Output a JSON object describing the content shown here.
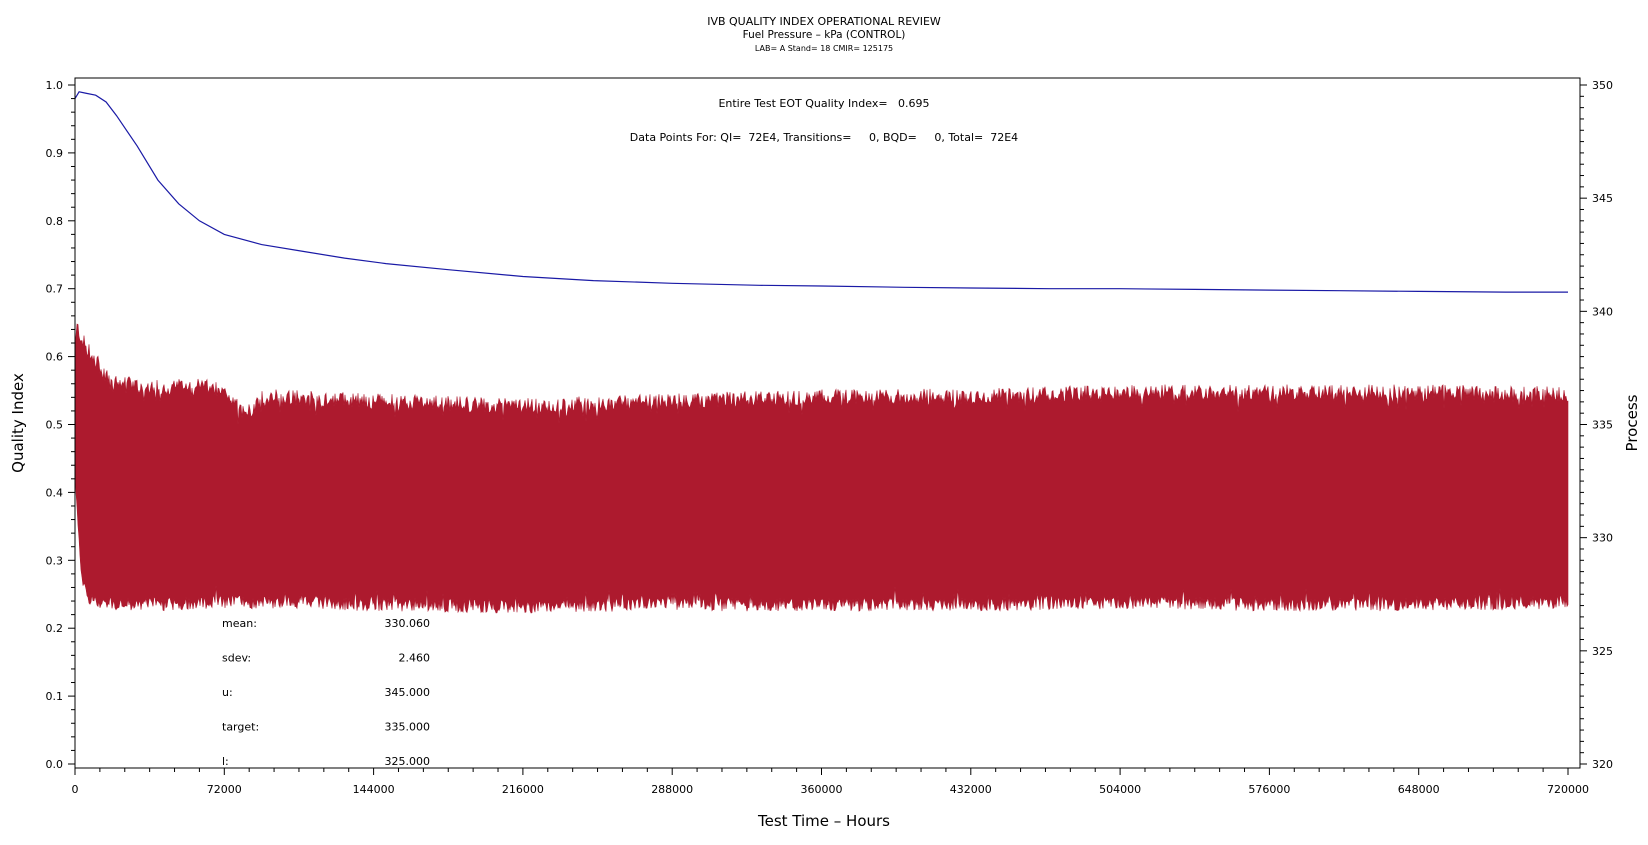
{
  "chart_data": {
    "type": "line",
    "title": "IVB QUALITY INDEX OPERATIONAL REVIEW",
    "subtitle": "Fuel Pressure – kPa (CONTROL)",
    "info_line": "LAB= A Stand= 18 CMIR= 125175",
    "annotation_qi": "Entire Test EOT Quality Index=   0.695",
    "annotation_points": "Data Points For: QI=  72E4, Transitions=     0, BQD=     0, Total=  72E4",
    "xlabel": "Test Time – Hours",
    "ylabel": "Quality Index",
    "y2label": "Process",
    "xlim": [
      0,
      720000
    ],
    "ylim": [
      0.0,
      1.0
    ],
    "y2lim": [
      320,
      350
    ],
    "x_ticks": [
      "0",
      "72000",
      "144000",
      "216000",
      "288000",
      "360000",
      "432000",
      "504000",
      "576000",
      "648000",
      "720000"
    ],
    "y_ticks": [
      "0.0",
      "0.1",
      "0.2",
      "0.3",
      "0.4",
      "0.5",
      "0.6",
      "0.7",
      "0.8",
      "0.9",
      "1.0"
    ],
    "y2_ticks": [
      "320",
      "325",
      "330",
      "335",
      "340",
      "345",
      "350"
    ],
    "colors": {
      "quality_index": "#1a1aa6",
      "process": "#ad1a2e"
    },
    "series": [
      {
        "axis": "left",
        "x": [
          0,
          2000,
          5000,
          10000,
          15000,
          20000,
          30000,
          40000,
          50000,
          60000,
          72000,
          90000,
          110000,
          130000,
          150000,
          180000,
          216000,
          250000,
          288000,
          330000,
          360000,
          400000,
          432000,
          470000,
          504000,
          540000,
          576000,
          610000,
          648000,
          690000,
          720000
        ],
        "values": [
          0.98,
          0.99,
          0.988,
          0.985,
          0.975,
          0.955,
          0.91,
          0.86,
          0.825,
          0.8,
          0.78,
          0.765,
          0.755,
          0.745,
          0.737,
          0.728,
          0.718,
          0.712,
          0.708,
          0.705,
          0.704,
          0.702,
          0.701,
          0.7,
          0.7,
          0.699,
          0.698,
          0.697,
          0.696,
          0.695,
          0.695
        ]
      },
      {
        "axis": "right",
        "x": [
          0,
          1000,
          3000,
          6000,
          10000,
          15000,
          20000,
          40000,
          60000,
          72000,
          78000,
          82000,
          86000,
          90000,
          100000,
          144000,
          216000,
          288000,
          360000,
          432000,
          504000,
          576000,
          648000,
          720000
        ],
        "upper": [
          338.5,
          339.5,
          339.0,
          338.5,
          338.0,
          337.3,
          337.0,
          336.8,
          336.9,
          336.6,
          336.0,
          335.7,
          335.9,
          336.4,
          336.4,
          336.2,
          336.0,
          336.2,
          336.4,
          336.4,
          336.6,
          336.6,
          336.6,
          336.5
        ],
        "lower": [
          333.0,
          331.0,
          328.0,
          327.3,
          327.0,
          327.0,
          326.9,
          326.9,
          327.0,
          327.0,
          327.1,
          327.0,
          327.0,
          327.0,
          327.0,
          326.9,
          326.8,
          326.9,
          326.9,
          326.9,
          327.0,
          326.9,
          326.9,
          327.0
        ]
      }
    ],
    "stats": [
      {
        "label": "mean:",
        "value": "330.060"
      },
      {
        "label": "sdev:",
        "value": "2.460"
      },
      {
        "label": "u:",
        "value": "345.000"
      },
      {
        "label": "target:",
        "value": "335.000"
      },
      {
        "label": "l:",
        "value": "325.000"
      }
    ]
  }
}
